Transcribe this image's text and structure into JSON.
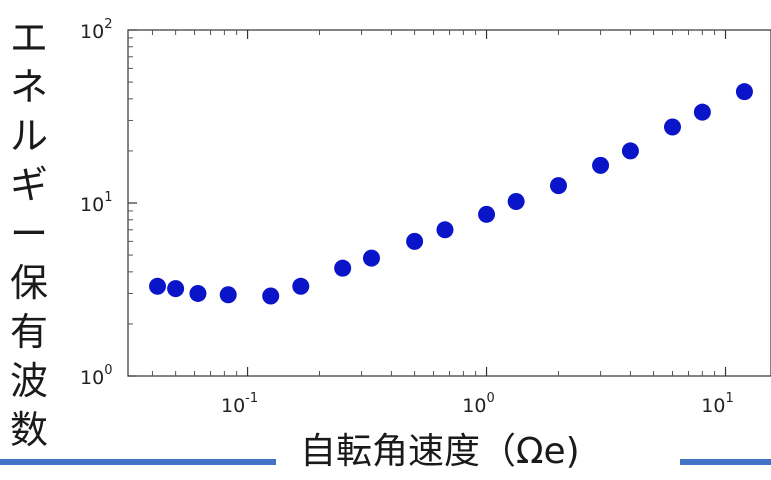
{
  "chart_data": {
    "type": "scatter",
    "xlabel": "自転角速度（Ωe)",
    "ylabel": "エネルギー保有波数",
    "x_scale": "log",
    "y_scale": "log",
    "xlim": [
      0.03,
      15
    ],
    "ylim": [
      1,
      100
    ],
    "grid": false,
    "marker_color": "#0a14c8",
    "x_ticks": [
      {
        "value": 0.1,
        "base": "10",
        "exp": "-1"
      },
      {
        "value": 1,
        "base": "10",
        "exp": "0"
      },
      {
        "value": 10,
        "base": "10",
        "exp": "1"
      }
    ],
    "y_ticks": [
      {
        "value": 1,
        "base": "10",
        "exp": "0"
      },
      {
        "value": 10,
        "base": "10",
        "exp": "1"
      },
      {
        "value": 100,
        "base": "10",
        "exp": "2"
      }
    ],
    "points": [
      {
        "x": 0.042,
        "y": 3.3
      },
      {
        "x": 0.05,
        "y": 3.2
      },
      {
        "x": 0.062,
        "y": 3.0
      },
      {
        "x": 0.083,
        "y": 2.95
      },
      {
        "x": 0.125,
        "y": 2.9
      },
      {
        "x": 0.167,
        "y": 3.3
      },
      {
        "x": 0.25,
        "y": 4.2
      },
      {
        "x": 0.33,
        "y": 4.8
      },
      {
        "x": 0.5,
        "y": 6.0
      },
      {
        "x": 0.67,
        "y": 7.0
      },
      {
        "x": 1.0,
        "y": 8.6
      },
      {
        "x": 1.33,
        "y": 10.2
      },
      {
        "x": 2.0,
        "y": 12.6
      },
      {
        "x": 3.0,
        "y": 16.5
      },
      {
        "x": 4.0,
        "y": 20.0
      },
      {
        "x": 6.0,
        "y": 27.5
      },
      {
        "x": 8.0,
        "y": 33.5
      },
      {
        "x": 12.0,
        "y": 44.0
      }
    ]
  }
}
